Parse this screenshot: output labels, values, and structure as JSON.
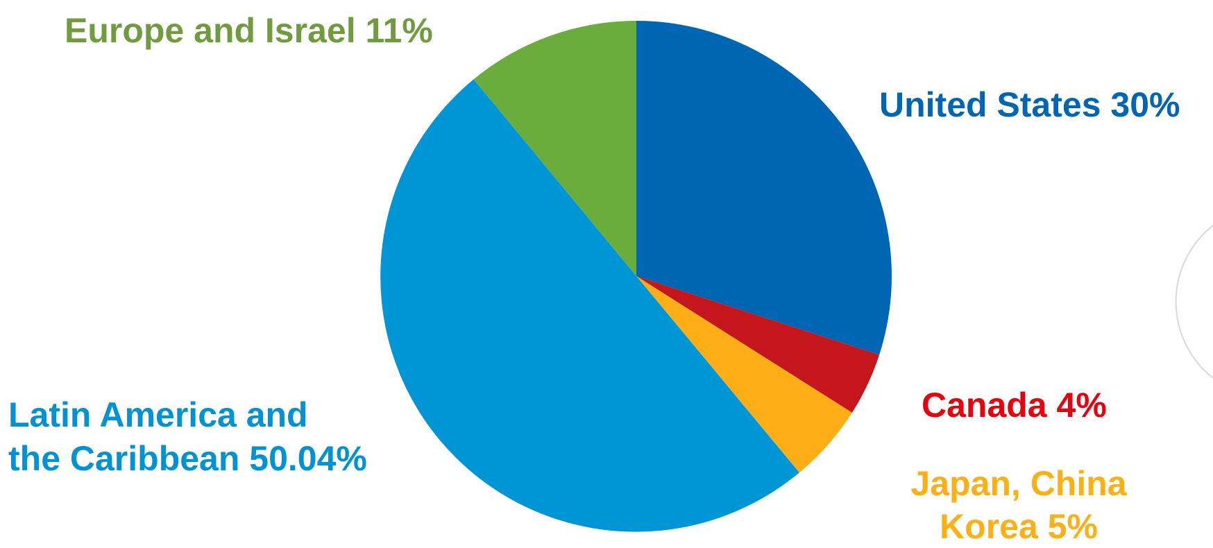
{
  "chart_data": {
    "type": "pie",
    "title": "",
    "slices": [
      {
        "name": "United States",
        "label": "United States 30%",
        "value": 30,
        "color": "#0065b3",
        "label_color": "#0065b3"
      },
      {
        "name": "Canada",
        "label": "Canada 4%",
        "value": 4,
        "color": "#c4161c",
        "label_color": "#e8000d"
      },
      {
        "name": "Japan, China Korea",
        "label": [
          "Japan, China",
          "Korea 5%"
        ],
        "value": 5,
        "color": "#fdae17",
        "label_color": "#fbb016"
      },
      {
        "name": "Latin America and the Caribbean",
        "label": [
          "Latin America and",
          "the Caribbean 50.04%"
        ],
        "value": 50.04,
        "color": "#0096d6",
        "label_color": "#0092d3"
      },
      {
        "name": "Europe and Israel",
        "label": "Europe and Israel  11%",
        "value": 11,
        "color": "#6aad3d",
        "label_color": "#709c3f"
      }
    ],
    "start_angle": "12 o'clock",
    "direction": "clockwise",
    "legend": "none"
  }
}
